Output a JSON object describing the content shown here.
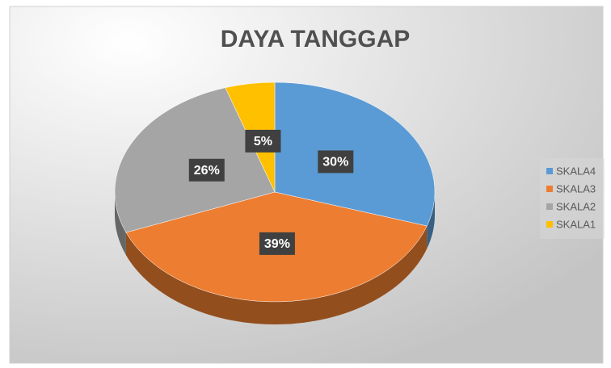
{
  "chart_data": {
    "type": "pie",
    "title": "DAYA TANGGAP",
    "categories": [
      "SKALA4",
      "SKALA3",
      "SKALA2",
      "SKALA1"
    ],
    "values": [
      30,
      39,
      26,
      5
    ],
    "value_labels": [
      "30%",
      "39%",
      "26%",
      "5%"
    ],
    "colors": [
      "#5b9bd5",
      "#ed7d31",
      "#a5a5a5",
      "#ffc000"
    ],
    "legend": "right"
  }
}
